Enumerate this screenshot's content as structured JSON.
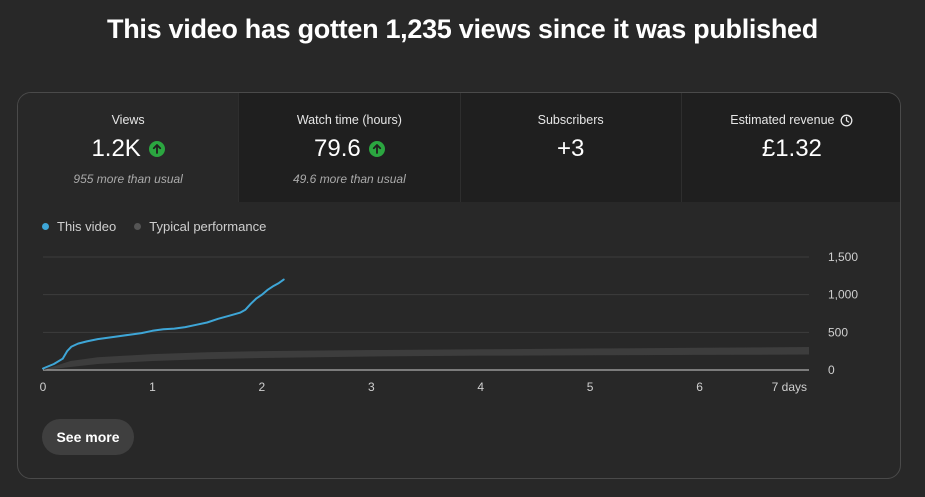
{
  "page": {
    "title": "This video has gotten 1,235 views since it was published"
  },
  "metrics": [
    {
      "label": "Views",
      "value": "1.2K",
      "trend_icon": "arrow-up-icon",
      "sub": "955 more than usual",
      "selected": true
    },
    {
      "label": "Watch time (hours)",
      "value": "79.6",
      "trend_icon": "arrow-up-icon",
      "sub": "49.6 more than usual",
      "selected": false
    },
    {
      "label": "Subscribers",
      "value": "+3",
      "trend_icon": "",
      "sub": "",
      "selected": false
    },
    {
      "label": "Estimated revenue",
      "value": "£1.32",
      "trend_icon": "",
      "label_icon": "clock-icon",
      "sub": "",
      "selected": false
    }
  ],
  "colors": {
    "this_video": "#3ea6d7",
    "typical": "#555555",
    "trend_up": "#2ba640",
    "background": "#282828",
    "metric_bg": "#1f1f1f"
  },
  "chart_data": {
    "type": "area",
    "legend": [
      "This video",
      "Typical performance"
    ],
    "legend_position": "top-left",
    "x_ticks": [
      "0",
      "1",
      "2",
      "3",
      "4",
      "5",
      "6",
      "7 days"
    ],
    "y_ticks": [
      "0",
      "500",
      "1,000",
      "1,500"
    ],
    "xlim": [
      0,
      7
    ],
    "ylim": [
      0,
      1500
    ],
    "grid": true,
    "series": [
      {
        "name": "This video",
        "type": "line",
        "x": [
          0,
          0.1,
          0.18,
          0.22,
          0.26,
          0.32,
          0.4,
          0.5,
          0.6,
          0.7,
          0.8,
          0.9,
          1.0,
          1.1,
          1.2,
          1.3,
          1.4,
          1.5,
          1.6,
          1.7,
          1.8,
          1.85,
          1.9,
          1.95,
          2.0,
          2.05,
          2.1,
          2.15,
          2.2
        ],
        "values": [
          20,
          80,
          150,
          250,
          310,
          350,
          380,
          410,
          430,
          450,
          470,
          490,
          520,
          540,
          550,
          570,
          600,
          630,
          680,
          720,
          760,
          800,
          880,
          950,
          1000,
          1060,
          1110,
          1150,
          1200
        ]
      },
      {
        "name": "Typical performance",
        "type": "band",
        "x": [
          0,
          0.25,
          0.5,
          1,
          1.5,
          2,
          3,
          4,
          5,
          6,
          7
        ],
        "low": [
          0,
          40,
          80,
          120,
          145,
          160,
          180,
          190,
          195,
          200,
          205
        ],
        "high": [
          0,
          120,
          170,
          210,
          235,
          250,
          265,
          275,
          285,
          295,
          305
        ]
      }
    ]
  },
  "actions": {
    "see_more_label": "See more"
  }
}
